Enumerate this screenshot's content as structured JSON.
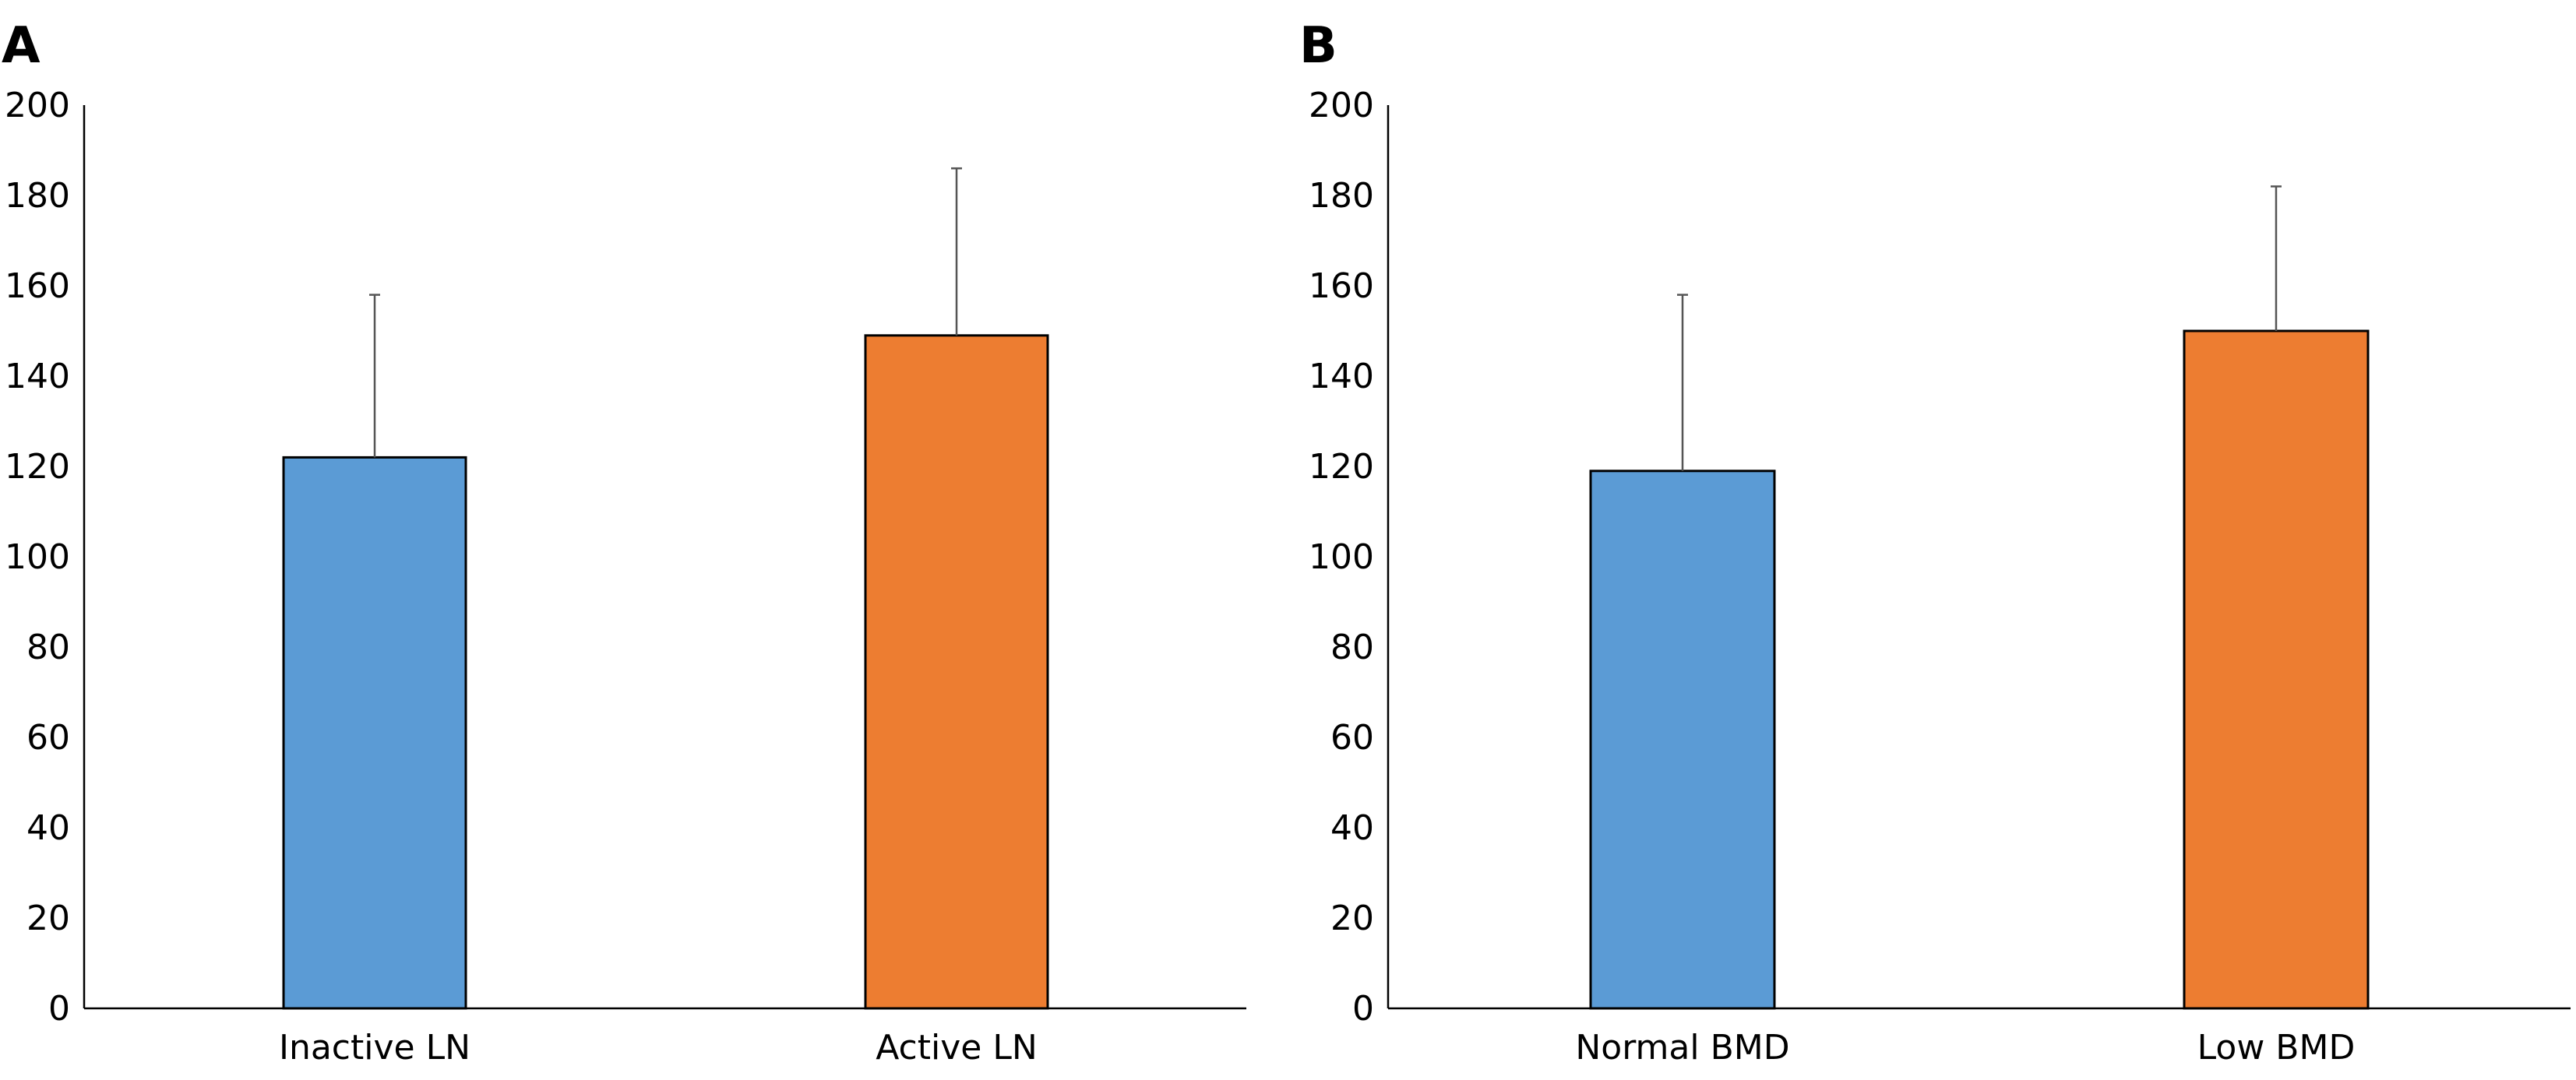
{
  "chart_data": [
    {
      "type": "bar",
      "panel_label": "A",
      "title": "",
      "xlabel": "",
      "ylabel": "",
      "categories": [
        "Inactive LN",
        "Active LN"
      ],
      "values": [
        122,
        149
      ],
      "error_upper": [
        158,
        186
      ],
      "colors": [
        "#5B9BD5",
        "#ED7D31"
      ],
      "ylim": [
        0,
        200
      ],
      "yticks": [
        "0",
        "20",
        "40",
        "60",
        "80",
        "100",
        "120",
        "140",
        "160",
        "180",
        "200"
      ],
      "grid": false,
      "legend": "none"
    },
    {
      "type": "bar",
      "panel_label": "B",
      "title": "",
      "xlabel": "",
      "ylabel": "",
      "categories": [
        "Normal BMD",
        "Low BMD"
      ],
      "values": [
        119,
        150
      ],
      "error_upper": [
        158,
        182
      ],
      "colors": [
        "#5B9BD5",
        "#ED7D31"
      ],
      "ylim": [
        0,
        200
      ],
      "yticks": [
        "0",
        "20",
        "40",
        "60",
        "80",
        "100",
        "120",
        "140",
        "160",
        "180",
        "200"
      ],
      "grid": false,
      "legend": "none"
    }
  ]
}
